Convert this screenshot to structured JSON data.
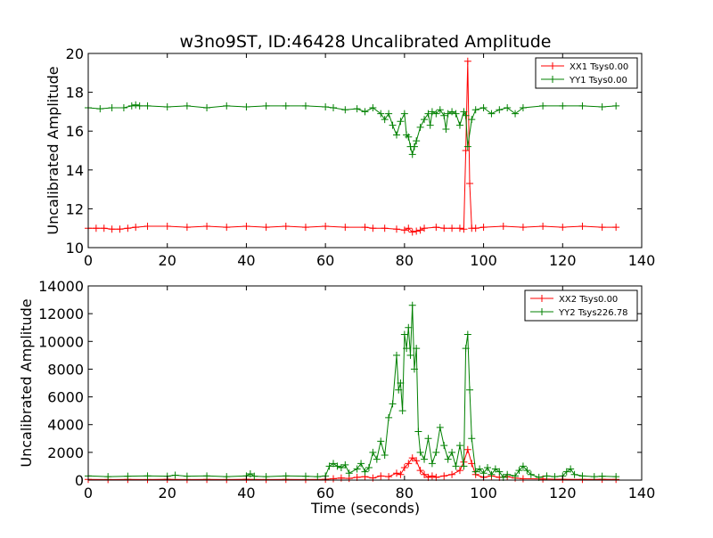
{
  "chart_data": [
    {
      "type": "line",
      "title": "w3no9ST, ID:46428 Uncalibrated Amplitude",
      "xlabel": "",
      "ylabel": "Uncalibrated Amplitude",
      "xlim": [
        0,
        140
      ],
      "ylim": [
        10,
        20
      ],
      "xticks": [
        "0",
        "20",
        "40",
        "60",
        "80",
        "100",
        "120",
        "140"
      ],
      "yticks": [
        "10",
        "12",
        "14",
        "16",
        "18",
        "20"
      ],
      "legend_position": "top-right",
      "marker": "+",
      "series": [
        {
          "name": "XX1 Tsys0.00",
          "color": "#ff0000",
          "x": [
            0,
            2,
            4,
            6,
            8,
            10,
            12,
            15,
            20,
            25,
            30,
            35,
            40,
            45,
            50,
            55,
            60,
            65,
            70,
            72,
            75,
            78,
            80,
            81,
            82,
            83,
            84,
            85,
            88,
            90,
            92,
            94,
            95,
            95.5,
            96,
            96.5,
            97,
            98,
            100,
            105,
            110,
            115,
            120,
            125,
            130,
            133.5
          ],
          "y": [
            11.0,
            11.0,
            11.0,
            10.95,
            10.95,
            11.0,
            11.05,
            11.1,
            11.1,
            11.05,
            11.1,
            11.05,
            11.1,
            11.05,
            11.1,
            11.05,
            11.1,
            11.05,
            11.05,
            11.0,
            11.0,
            10.95,
            10.9,
            11.0,
            10.8,
            10.85,
            10.9,
            11.0,
            11.05,
            11.0,
            11.0,
            11.0,
            10.95,
            15.0,
            19.6,
            13.3,
            11.0,
            11.0,
            11.05,
            11.1,
            11.05,
            11.1,
            11.05,
            11.1,
            11.05,
            11.05
          ]
        },
        {
          "name": "YY1 Tsys0.00",
          "color": "#008000",
          "x": [
            0,
            3,
            6,
            9,
            11,
            12,
            13,
            15,
            20,
            25,
            30,
            35,
            40,
            45,
            50,
            55,
            60,
            62,
            65,
            68,
            70,
            72,
            74,
            75,
            76,
            77,
            78,
            79,
            80,
            80.5,
            81,
            81.5,
            82,
            82.5,
            83,
            84,
            85,
            86,
            86.5,
            87,
            88,
            89,
            90,
            90.5,
            91,
            92,
            93,
            94,
            95,
            95.5,
            96,
            97,
            98,
            100,
            102,
            104,
            106,
            108,
            110,
            115,
            120,
            125,
            130,
            133.5
          ],
          "y": [
            17.2,
            17.15,
            17.2,
            17.2,
            17.3,
            17.35,
            17.3,
            17.3,
            17.25,
            17.3,
            17.2,
            17.3,
            17.25,
            17.3,
            17.3,
            17.3,
            17.25,
            17.2,
            17.1,
            17.15,
            17.0,
            17.2,
            16.9,
            16.6,
            16.9,
            16.3,
            15.8,
            16.5,
            16.9,
            15.8,
            15.7,
            15.2,
            14.8,
            15.2,
            15.5,
            16.2,
            16.6,
            16.9,
            16.3,
            17.0,
            16.9,
            17.1,
            16.8,
            16.1,
            16.9,
            17.0,
            16.9,
            16.3,
            17.0,
            16.8,
            15.2,
            16.6,
            17.1,
            17.2,
            16.9,
            17.1,
            17.2,
            16.9,
            17.2,
            17.3,
            17.3,
            17.3,
            17.25,
            17.3
          ]
        }
      ]
    },
    {
      "type": "line",
      "title": "",
      "xlabel": "Time (seconds)",
      "ylabel": "Uncalibrated Amplitude",
      "xlim": [
        0,
        140
      ],
      "ylim": [
        0,
        14000
      ],
      "xticks": [
        "0",
        "20",
        "40",
        "60",
        "80",
        "100",
        "120",
        "140"
      ],
      "yticks": [
        "0",
        "2000",
        "4000",
        "6000",
        "8000",
        "10000",
        "12000",
        "14000"
      ],
      "legend_position": "top-right",
      "marker": "+",
      "series": [
        {
          "name": "XX2 Tsys0.00",
          "color": "#ff0000",
          "x": [
            0,
            5,
            10,
            15,
            20,
            25,
            30,
            35,
            40,
            45,
            50,
            55,
            60,
            62,
            64,
            66,
            68,
            70,
            72,
            74,
            76,
            78,
            79,
            80,
            81,
            82,
            83,
            84,
            85,
            86,
            87,
            88,
            90,
            92,
            94,
            95,
            96,
            97,
            98,
            100,
            102,
            104,
            106,
            108,
            110,
            115,
            120,
            125,
            130,
            133.5
          ],
          "y": [
            50,
            40,
            50,
            40,
            60,
            40,
            50,
            40,
            60,
            40,
            50,
            40,
            60,
            100,
            150,
            120,
            200,
            250,
            150,
            300,
            250,
            500,
            400,
            900,
            1200,
            1600,
            1400,
            700,
            400,
            200,
            300,
            200,
            300,
            400,
            700,
            1300,
            2200,
            1200,
            400,
            200,
            300,
            200,
            250,
            150,
            100,
            80,
            60,
            50,
            60,
            50
          ]
        },
        {
          "name": "YY2 Tsys226.78",
          "color": "#008000",
          "x": [
            0,
            5,
            10,
            15,
            20,
            22,
            25,
            30,
            35,
            40,
            41,
            42,
            45,
            50,
            55,
            58,
            60,
            61,
            62,
            63,
            64,
            65,
            66,
            68,
            69,
            70,
            71,
            72,
            73,
            74,
            75,
            76,
            77,
            78,
            78.5,
            79,
            79.5,
            80,
            80.5,
            81,
            81.5,
            82,
            82.5,
            83,
            83.5,
            84,
            85,
            86,
            87,
            88,
            89,
            90,
            91,
            92,
            93,
            94,
            95,
            95.5,
            96,
            96.5,
            97,
            98,
            99,
            100,
            101,
            102,
            103,
            104,
            105,
            106,
            108,
            109,
            110,
            111,
            112,
            114,
            116,
            118,
            120,
            121,
            122,
            123,
            125,
            128,
            130,
            133.5
          ],
          "y": [
            300,
            250,
            280,
            300,
            280,
            350,
            280,
            300,
            250,
            300,
            450,
            280,
            250,
            300,
            280,
            250,
            300,
            1000,
            1200,
            1000,
            900,
            1100,
            500,
            800,
            1200,
            600,
            900,
            2000,
            1500,
            2800,
            1800,
            4500,
            5500,
            9000,
            6500,
            7000,
            5000,
            10500,
            9500,
            11000,
            9000,
            12600,
            8000,
            9500,
            3500,
            2000,
            1500,
            3000,
            1200,
            2000,
            3800,
            2500,
            1500,
            2000,
            1000,
            2500,
            1000,
            9500,
            10500,
            6500,
            3000,
            600,
            800,
            500,
            900,
            400,
            800,
            600,
            200,
            400,
            300,
            700,
            1000,
            700,
            400,
            200,
            300,
            250,
            300,
            600,
            800,
            400,
            300,
            250,
            280,
            250
          ]
        }
      ]
    }
  ]
}
